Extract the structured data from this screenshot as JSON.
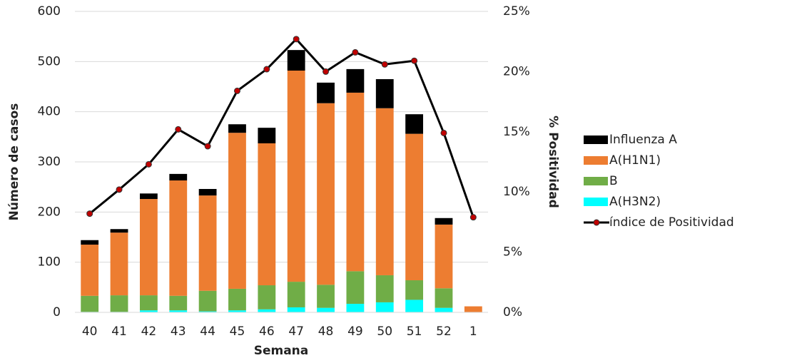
{
  "chart_data": {
    "type": "bar",
    "x_label": "Semana",
    "y_label": "Número de casos",
    "y2_label": "% Positividad",
    "categories": [
      "40",
      "41",
      "42",
      "43",
      "44",
      "45",
      "46",
      "47",
      "48",
      "49",
      "50",
      "51",
      "52",
      "1"
    ],
    "stacked": true,
    "grid": true,
    "legend": "right",
    "ylim": [
      0,
      600
    ],
    "yticks": [
      0,
      100,
      200,
      300,
      400,
      500,
      600
    ],
    "y2lim": [
      0,
      25
    ],
    "y2ticks": [
      {
        "value": 0,
        "label": "0%"
      },
      {
        "value": 5,
        "label": "5%"
      },
      {
        "value": 10,
        "label": "10%"
      },
      {
        "value": 15,
        "label": "15%"
      },
      {
        "value": 20,
        "label": "20%"
      },
      {
        "value": 25,
        "label": "25%"
      }
    ],
    "series": [
      {
        "name": "Influenza A",
        "color": "#000000",
        "values": [
          9,
          7,
          11,
          13,
          13,
          17,
          31,
          41,
          41,
          47,
          58,
          39,
          13,
          0
        ]
      },
      {
        "name": "A(H1N1)",
        "color": "#ed7d31",
        "values": [
          102,
          125,
          192,
          230,
          190,
          311,
          283,
          421,
          362,
          356,
          333,
          292,
          127,
          12
        ]
      },
      {
        "name": "B",
        "color": "#70ad47",
        "values": [
          32,
          33,
          30,
          29,
          41,
          43,
          48,
          51,
          46,
          65,
          54,
          39,
          39,
          0
        ]
      },
      {
        "name": "A(H3N2)",
        "color": "#00ffff",
        "values": [
          1,
          1,
          4,
          4,
          2,
          4,
          6,
          10,
          9,
          17,
          20,
          25,
          9,
          0
        ]
      },
      {
        "name": "índice de Positividad",
        "type": "line",
        "axis": "y2",
        "color": "#000000",
        "marker_color": "#c00000",
        "values": [
          8.2,
          10.2,
          12.3,
          15.2,
          13.8,
          18.4,
          20.2,
          22.7,
          20.0,
          21.6,
          20.6,
          20.9,
          14.9,
          7.9
        ]
      }
    ]
  }
}
